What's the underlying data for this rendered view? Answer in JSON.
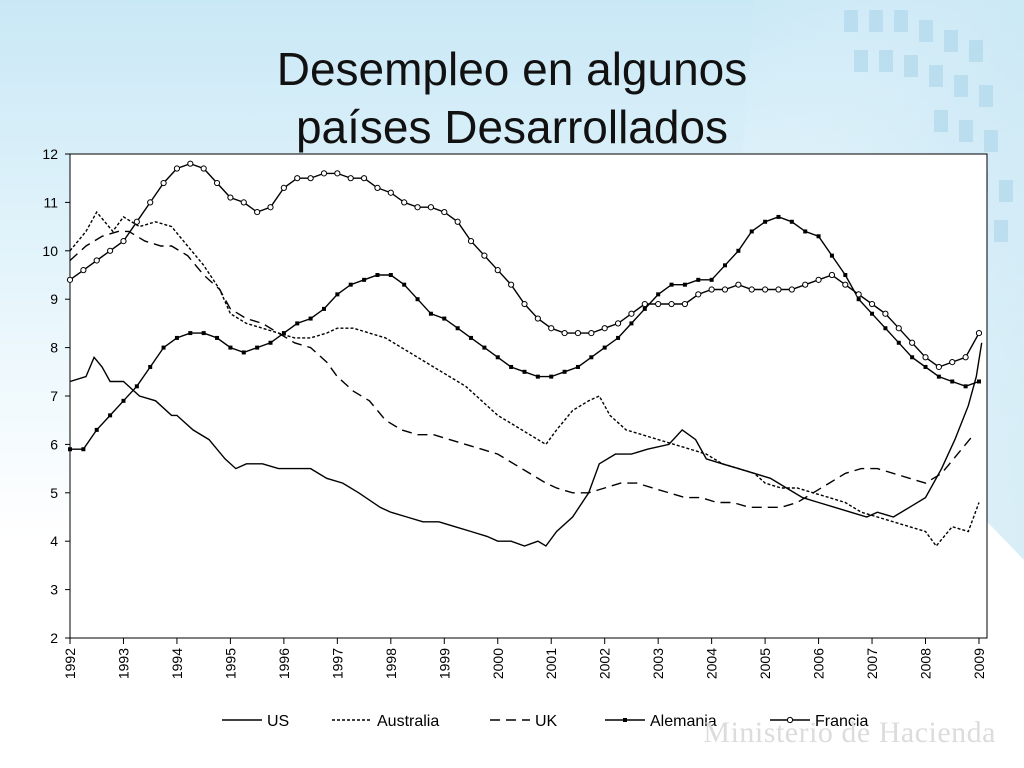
{
  "slide": {
    "title_line1": "Desempleo en algunos",
    "title_line2": "países Desarrollados",
    "watermark": "Ministerio de Hacienda",
    "background_color": "#d8eef8"
  },
  "chart_data": {
    "type": "line",
    "title": "Desempleo en algunos países Desarrollados",
    "xlabel": "",
    "ylabel": "",
    "xlim": [
      1992,
      2009.15
    ],
    "ylim": [
      2,
      12
    ],
    "yticks": [
      2,
      3,
      4,
      5,
      6,
      7,
      8,
      9,
      10,
      11,
      12
    ],
    "xticks": [
      "1992",
      "1993",
      "1994",
      "1995",
      "1996",
      "1997",
      "1998",
      "1999",
      "2000",
      "2001",
      "2002",
      "2003",
      "2004",
      "2005",
      "2006",
      "2007",
      "2008",
      "2009"
    ],
    "grid": false,
    "legend_position": "bottom",
    "series": [
      {
        "name": "US",
        "style": "solid",
        "color": "#000000",
        "x": [
          1992.0,
          1992.3,
          1992.45,
          1992.6,
          1992.75,
          1993.0,
          1993.3,
          1993.6,
          1993.9,
          1994.0,
          1994.3,
          1994.6,
          1994.9,
          1995.1,
          1995.3,
          1995.6,
          1995.9,
          1996.2,
          1996.5,
          1996.8,
          1997.1,
          1997.4,
          1997.8,
          1998.0,
          1998.3,
          1998.6,
          1998.9,
          1999.2,
          1999.5,
          1999.8,
          2000.0,
          2000.25,
          2000.5,
          2000.75,
          2000.9,
          2001.1,
          2001.4,
          2001.7,
          2001.9,
          2002.2,
          2002.5,
          2002.8,
          2003.2,
          2003.45,
          2003.7,
          2003.9,
          2004.2,
          2004.5,
          2004.8,
          2005.1,
          2005.4,
          2005.7,
          2006.0,
          2006.3,
          2006.6,
          2006.9,
          2007.1,
          2007.4,
          2007.7,
          2008.0,
          2008.3,
          2008.55,
          2008.8,
          2008.95,
          2009.05
        ],
        "y": [
          7.3,
          7.4,
          7.8,
          7.6,
          7.3,
          7.3,
          7.0,
          6.9,
          6.6,
          6.6,
          6.3,
          6.1,
          5.7,
          5.5,
          5.6,
          5.6,
          5.5,
          5.5,
          5.5,
          5.3,
          5.2,
          5.0,
          4.7,
          4.6,
          4.5,
          4.4,
          4.4,
          4.3,
          4.2,
          4.1,
          4.0,
          4.0,
          3.9,
          4.0,
          3.9,
          4.2,
          4.5,
          5.0,
          5.6,
          5.8,
          5.8,
          5.9,
          6.0,
          6.3,
          6.1,
          5.7,
          5.6,
          5.5,
          5.4,
          5.3,
          5.1,
          4.9,
          4.8,
          4.7,
          4.6,
          4.5,
          4.6,
          4.5,
          4.7,
          4.9,
          5.5,
          6.1,
          6.8,
          7.4,
          8.1
        ]
      },
      {
        "name": "Australia",
        "style": "dotted",
        "color": "#000000",
        "x": [
          1992.0,
          1992.3,
          1992.5,
          1992.8,
          1993.0,
          1993.3,
          1993.6,
          1993.9,
          1994.2,
          1994.5,
          1994.8,
          1995.0,
          1995.3,
          1995.6,
          1995.9,
          1996.2,
          1996.5,
          1996.8,
          1997.0,
          1997.3,
          1997.6,
          1997.9,
          1998.2,
          1998.5,
          1998.8,
          1999.1,
          1999.4,
          1999.7,
          2000.0,
          2000.3,
          2000.6,
          2000.9,
          2001.1,
          2001.4,
          2001.7,
          2001.9,
          2002.1,
          2002.4,
          2002.7,
          2003.0,
          2003.3,
          2003.6,
          2003.9,
          2004.2,
          2004.5,
          2004.8,
          2005.0,
          2005.3,
          2005.6,
          2005.9,
          2006.2,
          2006.5,
          2006.8,
          2007.1,
          2007.4,
          2007.7,
          2008.0,
          2008.2,
          2008.5,
          2008.8,
          2009.0
        ],
        "y": [
          10.0,
          10.4,
          10.8,
          10.4,
          10.7,
          10.5,
          10.6,
          10.5,
          10.1,
          9.7,
          9.2,
          8.7,
          8.5,
          8.4,
          8.3,
          8.2,
          8.2,
          8.3,
          8.4,
          8.4,
          8.3,
          8.2,
          8.0,
          7.8,
          7.6,
          7.4,
          7.2,
          6.9,
          6.6,
          6.4,
          6.2,
          6.0,
          6.3,
          6.7,
          6.9,
          7.0,
          6.6,
          6.3,
          6.2,
          6.1,
          6.0,
          5.9,
          5.8,
          5.6,
          5.5,
          5.4,
          5.2,
          5.1,
          5.1,
          5.0,
          4.9,
          4.8,
          4.6,
          4.5,
          4.4,
          4.3,
          4.2,
          3.9,
          4.3,
          4.2,
          4.8
        ]
      },
      {
        "name": "UK",
        "style": "dashed",
        "color": "#000000",
        "x": [
          1992.0,
          1992.3,
          1992.6,
          1992.9,
          1993.1,
          1993.4,
          1993.7,
          1993.9,
          1994.2,
          1994.5,
          1994.8,
          1995.0,
          1995.3,
          1995.6,
          1995.9,
          1996.2,
          1996.5,
          1996.8,
          1997.0,
          1997.3,
          1997.6,
          1997.9,
          1998.2,
          1998.5,
          1998.8,
          1999.1,
          1999.4,
          1999.7,
          2000.0,
          2000.3,
          2000.6,
          2000.9,
          2001.1,
          2001.4,
          2001.7,
          2002.0,
          2002.3,
          2002.6,
          2002.9,
          2003.2,
          2003.5,
          2003.8,
          2004.1,
          2004.4,
          2004.7,
          2005.0,
          2005.3,
          2005.6,
          2005.9,
          2006.2,
          2006.5,
          2006.8,
          2007.1,
          2007.4,
          2007.7,
          2008.0,
          2008.3,
          2008.6,
          2008.9
        ],
        "y": [
          9.8,
          10.1,
          10.3,
          10.4,
          10.4,
          10.2,
          10.1,
          10.1,
          9.9,
          9.5,
          9.2,
          8.8,
          8.6,
          8.5,
          8.3,
          8.1,
          8.0,
          7.7,
          7.4,
          7.1,
          6.9,
          6.5,
          6.3,
          6.2,
          6.2,
          6.1,
          6.0,
          5.9,
          5.8,
          5.6,
          5.4,
          5.2,
          5.1,
          5.0,
          5.0,
          5.1,
          5.2,
          5.2,
          5.1,
          5.0,
          4.9,
          4.9,
          4.8,
          4.8,
          4.7,
          4.7,
          4.7,
          4.8,
          5.0,
          5.2,
          5.4,
          5.5,
          5.5,
          5.4,
          5.3,
          5.2,
          5.4,
          5.8,
          6.2
        ]
      },
      {
        "name": "Alemania",
        "style": "solid-square-markers",
        "color": "#000000",
        "x": [
          1992.0,
          1992.25,
          1992.5,
          1992.75,
          1993.0,
          1993.25,
          1993.5,
          1993.75,
          1994.0,
          1994.25,
          1994.5,
          1994.75,
          1995.0,
          1995.25,
          1995.5,
          1995.75,
          1996.0,
          1996.25,
          1996.5,
          1996.75,
          1997.0,
          1997.25,
          1997.5,
          1997.75,
          1998.0,
          1998.25,
          1998.5,
          1998.75,
          1999.0,
          1999.25,
          1999.5,
          1999.75,
          2000.0,
          2000.25,
          2000.5,
          2000.75,
          2001.0,
          2001.25,
          2001.5,
          2001.75,
          2002.0,
          2002.25,
          2002.5,
          2002.75,
          2003.0,
          2003.25,
          2003.5,
          2003.75,
          2004.0,
          2004.25,
          2004.5,
          2004.75,
          2005.0,
          2005.25,
          2005.5,
          2005.75,
          2006.0,
          2006.25,
          2006.5,
          2006.75,
          2007.0,
          2007.25,
          2007.5,
          2007.75,
          2008.0,
          2008.25,
          2008.5,
          2008.75,
          2009.0
        ],
        "y": [
          5.9,
          5.9,
          6.3,
          6.6,
          6.9,
          7.2,
          7.6,
          8.0,
          8.2,
          8.3,
          8.3,
          8.2,
          8.0,
          7.9,
          8.0,
          8.1,
          8.3,
          8.5,
          8.6,
          8.8,
          9.1,
          9.3,
          9.4,
          9.5,
          9.5,
          9.3,
          9.0,
          8.7,
          8.6,
          8.4,
          8.2,
          8.0,
          7.8,
          7.6,
          7.5,
          7.4,
          7.4,
          7.5,
          7.6,
          7.8,
          8.0,
          8.2,
          8.5,
          8.8,
          9.1,
          9.3,
          9.3,
          9.4,
          9.4,
          9.7,
          10.0,
          10.4,
          10.6,
          10.7,
          10.6,
          10.4,
          10.3,
          9.9,
          9.5,
          9.0,
          8.7,
          8.4,
          8.1,
          7.8,
          7.6,
          7.4,
          7.3,
          7.2,
          7.3
        ]
      },
      {
        "name": "Francia",
        "style": "solid-circle-markers",
        "color": "#000000",
        "x": [
          1992.0,
          1992.25,
          1992.5,
          1992.75,
          1993.0,
          1993.25,
          1993.5,
          1993.75,
          1994.0,
          1994.25,
          1994.5,
          1994.75,
          1995.0,
          1995.25,
          1995.5,
          1995.75,
          1996.0,
          1996.25,
          1996.5,
          1996.75,
          1997.0,
          1997.25,
          1997.5,
          1997.75,
          1998.0,
          1998.25,
          1998.5,
          1998.75,
          1999.0,
          1999.25,
          1999.5,
          1999.75,
          2000.0,
          2000.25,
          2000.5,
          2000.75,
          2001.0,
          2001.25,
          2001.5,
          2001.75,
          2002.0,
          2002.25,
          2002.5,
          2002.75,
          2003.0,
          2003.25,
          2003.5,
          2003.75,
          2004.0,
          2004.25,
          2004.5,
          2004.75,
          2005.0,
          2005.25,
          2005.5,
          2005.75,
          2006.0,
          2006.25,
          2006.5,
          2006.75,
          2007.0,
          2007.25,
          2007.5,
          2007.75,
          2008.0,
          2008.25,
          2008.5,
          2008.75,
          2009.0
        ],
        "y": [
          9.4,
          9.6,
          9.8,
          10.0,
          10.2,
          10.6,
          11.0,
          11.4,
          11.7,
          11.8,
          11.7,
          11.4,
          11.1,
          11.0,
          10.8,
          10.9,
          11.3,
          11.5,
          11.5,
          11.6,
          11.6,
          11.5,
          11.5,
          11.3,
          11.2,
          11.0,
          10.9,
          10.9,
          10.8,
          10.6,
          10.2,
          9.9,
          9.6,
          9.3,
          8.9,
          8.6,
          8.4,
          8.3,
          8.3,
          8.3,
          8.4,
          8.5,
          8.7,
          8.9,
          8.9,
          8.9,
          8.9,
          9.1,
          9.2,
          9.2,
          9.3,
          9.2,
          9.2,
          9.2,
          9.2,
          9.3,
          9.4,
          9.5,
          9.3,
          9.1,
          8.9,
          8.7,
          8.4,
          8.1,
          7.8,
          7.6,
          7.7,
          7.8,
          8.3
        ]
      }
    ]
  }
}
